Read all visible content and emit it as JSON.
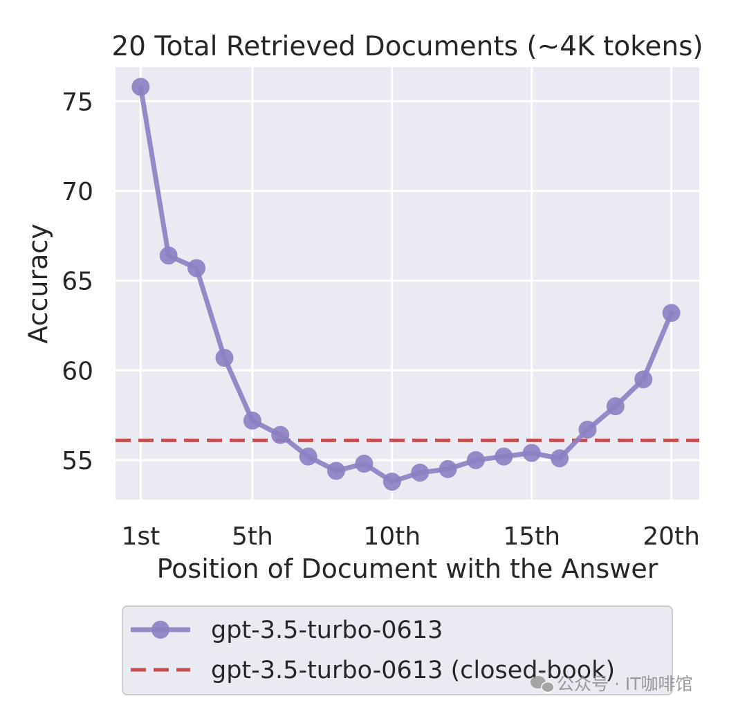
{
  "chart_data": {
    "type": "line",
    "title": "20 Total Retrieved Documents (~4K tokens)",
    "xlabel": "Position of Document with the Answer",
    "ylabel": "Accuracy",
    "x": [
      1,
      2,
      3,
      4,
      5,
      6,
      7,
      8,
      9,
      10,
      11,
      12,
      13,
      14,
      15,
      16,
      17,
      18,
      19,
      20
    ],
    "xlim": [
      0.1,
      21.0
    ],
    "ylim": [
      52.8,
      76.9
    ],
    "x_ticks": [
      {
        "value": 1,
        "label": "1st"
      },
      {
        "value": 5,
        "label": "5th"
      },
      {
        "value": 10,
        "label": "10th"
      },
      {
        "value": 15,
        "label": "15th"
      },
      {
        "value": 20,
        "label": "20th"
      }
    ],
    "y_ticks": [
      {
        "value": 55,
        "label": "55"
      },
      {
        "value": 60,
        "label": "60"
      },
      {
        "value": 65,
        "label": "65"
      },
      {
        "value": 70,
        "label": "70"
      },
      {
        "value": 75,
        "label": "75"
      }
    ],
    "grid": true,
    "series": [
      {
        "name": "gpt-3.5-turbo-0613",
        "style": "line-markers",
        "color": "#8c7fc2",
        "values": [
          75.8,
          66.4,
          65.7,
          60.7,
          57.2,
          56.4,
          55.2,
          54.4,
          54.8,
          53.8,
          54.3,
          54.5,
          55.0,
          55.2,
          55.4,
          55.1,
          56.7,
          58.0,
          59.5,
          63.2
        ]
      },
      {
        "name": "gpt-3.5-turbo-0613 (closed-book)",
        "style": "dashed",
        "color": "#c44e52",
        "value": 56.1
      }
    ],
    "legend": {
      "placement": "bottom",
      "entries": [
        "gpt-3.5-turbo-0613",
        "gpt-3.5-turbo-0613 (closed-book)"
      ]
    }
  },
  "style": {
    "plot_background": "#eaeaf2",
    "grid_color": "#ffffff",
    "text_color": "#262626"
  },
  "watermark": {
    "text": "公众号 · IT咖啡馆",
    "icon": "wechat-icon"
  }
}
